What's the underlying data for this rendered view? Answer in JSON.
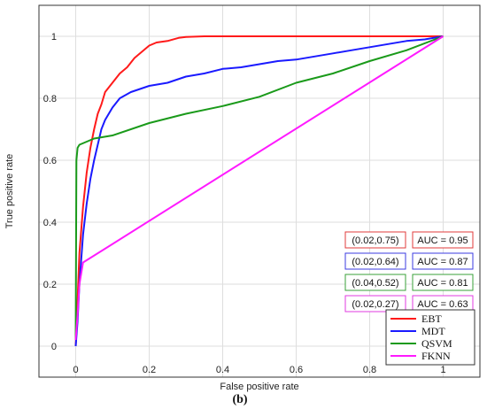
{
  "chart_data": {
    "type": "line",
    "xlabel": "False positive rate",
    "ylabel": "True positive rate",
    "xlim": [
      -0.1,
      1.1
    ],
    "ylim": [
      -0.1,
      1.1
    ],
    "xticks": [
      0,
      0.2,
      0.4,
      0.6,
      0.8,
      1
    ],
    "yticks": [
      0,
      0.2,
      0.4,
      0.6,
      0.8,
      1
    ],
    "grid": true,
    "legend_position": "bottom-right",
    "caption": "(b)",
    "series": [
      {
        "name": "EBT",
        "color": "#ff1a1a",
        "x": [
          0,
          0.005,
          0.01,
          0.02,
          0.03,
          0.04,
          0.05,
          0.06,
          0.07,
          0.08,
          0.1,
          0.12,
          0.14,
          0.16,
          0.18,
          0.2,
          0.22,
          0.25,
          0.28,
          0.3,
          0.35,
          0.4,
          0.5,
          0.6,
          0.8,
          1
        ],
        "y": [
          0,
          0.15,
          0.3,
          0.45,
          0.56,
          0.64,
          0.7,
          0.75,
          0.78,
          0.82,
          0.85,
          0.88,
          0.9,
          0.93,
          0.95,
          0.97,
          0.98,
          0.985,
          0.995,
          0.998,
          1,
          1,
          1,
          1,
          1,
          1
        ]
      },
      {
        "name": "MDT",
        "color": "#1a1aff",
        "x": [
          0,
          0.005,
          0.01,
          0.02,
          0.03,
          0.04,
          0.05,
          0.06,
          0.07,
          0.08,
          0.1,
          0.12,
          0.15,
          0.2,
          0.25,
          0.3,
          0.35,
          0.4,
          0.45,
          0.5,
          0.55,
          0.6,
          0.65,
          0.7,
          0.75,
          0.8,
          0.85,
          0.9,
          0.95,
          1
        ],
        "y": [
          0,
          0.08,
          0.2,
          0.36,
          0.46,
          0.54,
          0.6,
          0.65,
          0.7,
          0.73,
          0.77,
          0.8,
          0.82,
          0.84,
          0.85,
          0.87,
          0.88,
          0.895,
          0.9,
          0.91,
          0.92,
          0.925,
          0.935,
          0.945,
          0.955,
          0.965,
          0.975,
          0.985,
          0.99,
          1
        ]
      },
      {
        "name": "QSVM",
        "color": "#1a9a1a",
        "x": [
          0,
          0.002,
          0.005,
          0.01,
          0.05,
          0.1,
          0.2,
          0.3,
          0.4,
          0.5,
          0.6,
          0.7,
          0.8,
          0.9,
          1
        ],
        "y": [
          0.02,
          0.6,
          0.64,
          0.65,
          0.67,
          0.68,
          0.72,
          0.75,
          0.775,
          0.805,
          0.85,
          0.88,
          0.92,
          0.955,
          1
        ]
      },
      {
        "name": "FKNN",
        "color": "#ff1aff",
        "x": [
          0,
          0.005,
          0.01,
          0.02,
          1
        ],
        "y": [
          0.02,
          0.1,
          0.2,
          0.27,
          1
        ]
      }
    ],
    "annotations": [
      {
        "point": "(0.02,0.75)",
        "auc": "AUC = 0.95",
        "color": "#e23b3b"
      },
      {
        "point": "(0.02,0.64)",
        "auc": "AUC = 0.87",
        "color": "#3b3be2"
      },
      {
        "point": "(0.04,0.52)",
        "auc": "AUC = 0.81",
        "color": "#3aa03a"
      },
      {
        "point": "(0.02,0.27)",
        "auc": "AUC = 0.63",
        "color": "#e23be2"
      }
    ]
  }
}
